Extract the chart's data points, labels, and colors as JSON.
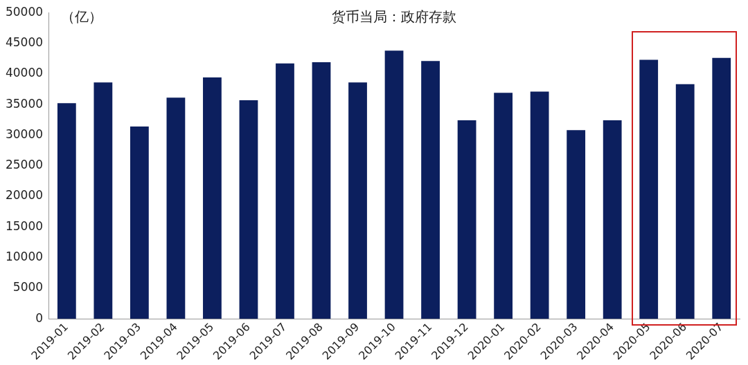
{
  "chart_data": {
    "type": "bar",
    "title": "货币当局：政府存款",
    "ylabel": "（亿）",
    "categories": [
      "2019-01",
      "2019-02",
      "2019-03",
      "2019-04",
      "2019-05",
      "2019-06",
      "2019-07",
      "2019-08",
      "2019-09",
      "2019-10",
      "2019-11",
      "2019-12",
      "2020-01",
      "2020-02",
      "2020-03",
      "2020-04",
      "2020-05",
      "2020-06",
      "2020-07"
    ],
    "values": [
      35200,
      38600,
      31400,
      36100,
      39400,
      35700,
      41700,
      41900,
      38600,
      43800,
      42100,
      32400,
      36900,
      37100,
      30800,
      32400,
      42300,
      38300,
      42600
    ],
    "color": "#0c1f5e",
    "ylim": [
      0,
      50000
    ],
    "yticks": [
      0,
      5000,
      10000,
      15000,
      20000,
      25000,
      30000,
      35000,
      40000,
      45000,
      50000
    ],
    "grid": false,
    "legend": false
  }
}
